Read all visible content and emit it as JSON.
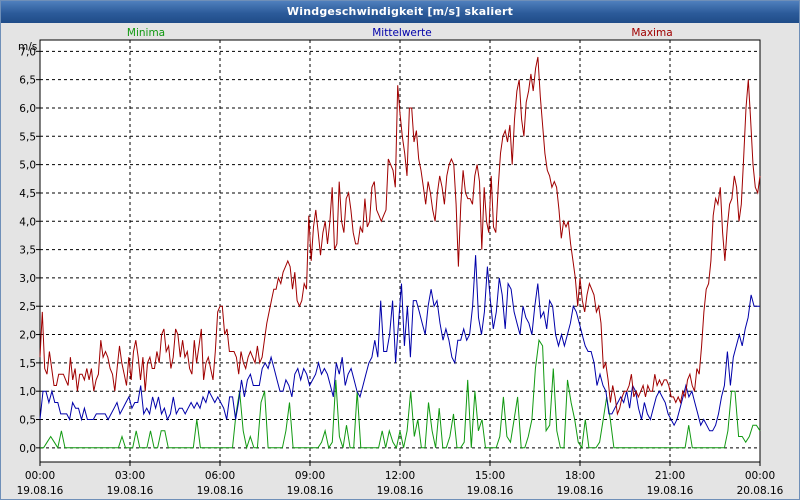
{
  "chart_data": {
    "type": "line",
    "title": "Windgeschwindigkeit [m/s] skaliert",
    "ylabel": "m/s",
    "ylim": [
      -0.25,
      7.2
    ],
    "xlim": [
      0,
      24
    ],
    "grid": true,
    "yticks": [
      "0,0",
      "0,5",
      "1,0",
      "1,5",
      "2,0",
      "2,5",
      "3,0",
      "3,5",
      "4,0",
      "4,5",
      "5,0",
      "5,5",
      "6,0",
      "6,5",
      "7,0"
    ],
    "xticks": [
      {
        "time": "00:00",
        "date": "19.08.16"
      },
      {
        "time": "03:00",
        "date": "19.08.16"
      },
      {
        "time": "06:00",
        "date": "19.08.16"
      },
      {
        "time": "09:00",
        "date": "19.08.16"
      },
      {
        "time": "12:00",
        "date": "19.08.16"
      },
      {
        "time": "15:00",
        "date": "19.08.16"
      },
      {
        "time": "18:00",
        "date": "19.08.16"
      },
      {
        "time": "21:00",
        "date": "19.08.16"
      },
      {
        "time": "00:00",
        "date": "20.08.16"
      }
    ],
    "series": [
      {
        "name": "Minima",
        "color": "#119911",
        "values": [
          0.0,
          0.0,
          0.1,
          0.2,
          0.1,
          0.0,
          0.3,
          0.0,
          0.0,
          0.0,
          0.0,
          0.0,
          0.0,
          0.0,
          0.0,
          0.0,
          0.0,
          0.0,
          0.0,
          0.0,
          0.0,
          0.0,
          0.0,
          0.2,
          0.0,
          0.0,
          0.0,
          0.3,
          0.0,
          0.0,
          0.0,
          0.3,
          0.0,
          0.0,
          0.3,
          0.3,
          0.0,
          0.0,
          0.0,
          0.0,
          0.0,
          0.0,
          0.0,
          0.0,
          0.5,
          0.0,
          0.0,
          0.0,
          0.0,
          0.0,
          0.0,
          0.0,
          0.0,
          0.0,
          0.0,
          0.6,
          1.0,
          0.3,
          0.0,
          0.2,
          0.0,
          0.0,
          0.8,
          1.0,
          0.0,
          0.0,
          0.0,
          0.0,
          0.0,
          0.3,
          0.8,
          0.0,
          0.0,
          0.0,
          0.0,
          0.0,
          0.0,
          0.0,
          0.0,
          0.1,
          0.3,
          0.0,
          0.1,
          1.2,
          0.2,
          0.0,
          0.4,
          0.0,
          0.0,
          1.0,
          0.0,
          0.0,
          0.0,
          0.0,
          0.0,
          0.0,
          0.3,
          0.0,
          0.3,
          0.1,
          0.0,
          0.3,
          0.0,
          0.3,
          1.0,
          0.2,
          0.5,
          0.0,
          0.0,
          0.8,
          0.3,
          0.0,
          0.7,
          0.0,
          0.0,
          0.2,
          0.6,
          0.0,
          0.0,
          0.1,
          1.2,
          0.0,
          1.0,
          0.3,
          0.5,
          0.0,
          0.0,
          0.0,
          0.0,
          0.2,
          0.9,
          0.2,
          0.1,
          0.5,
          0.9,
          0.0,
          0.0,
          0.2,
          0.5,
          1.4,
          1.9,
          1.8,
          0.3,
          0.4,
          1.4,
          0.3,
          0.0,
          0.0,
          1.2,
          0.8,
          0.5,
          0.1,
          0.0,
          0.5,
          0.0,
          0.0,
          0.0,
          0.1,
          0.5,
          0.9,
          0.5,
          0.0,
          0.0,
          0.0,
          0.0,
          0.0,
          0.0,
          0.0,
          0.0,
          0.0,
          0.0,
          0.0,
          0.0,
          0.0,
          0.0,
          0.0,
          0.0,
          0.0,
          0.0,
          0.0,
          0.0,
          0.0,
          0.4,
          0.0,
          0.0,
          0.0,
          0.0,
          0.0,
          0.0,
          0.0,
          0.0,
          0.0,
          0.0,
          0.3,
          1.0,
          1.0,
          0.2,
          0.2,
          0.1,
          0.2,
          0.4,
          0.4,
          0.3
        ]
      },
      {
        "name": "Mittelwerte",
        "color": "#0000aa",
        "values": [
          0.5,
          1.0,
          1.0,
          0.8,
          1.0,
          0.8,
          0.8,
          0.6,
          0.6,
          0.6,
          0.5,
          0.8,
          0.7,
          0.7,
          0.5,
          0.7,
          0.5,
          0.5,
          0.5,
          0.6,
          0.6,
          0.6,
          0.6,
          0.5,
          0.6,
          0.7,
          0.8,
          0.6,
          0.7,
          0.8,
          0.9,
          0.7,
          0.8,
          0.8,
          1.1,
          0.6,
          0.7,
          0.6,
          0.9,
          0.7,
          0.9,
          0.6,
          0.7,
          0.5,
          0.6,
          0.9,
          0.6,
          0.7,
          0.7,
          0.6,
          0.7,
          0.8,
          0.7,
          0.8,
          0.7,
          0.9,
          0.8,
          1.0,
          0.9,
          0.8,
          0.9,
          0.8,
          0.7,
          0.5,
          0.9,
          0.9,
          0.5,
          0.8,
          1.2,
          0.9,
          1.2,
          1.3,
          1.1,
          1.1,
          1.1,
          1.4,
          1.5,
          1.4,
          1.6,
          1.4,
          1.2,
          1.0,
          1.0,
          1.2,
          1.1,
          0.9,
          1.3,
          1.4,
          1.2,
          1.4,
          1.3,
          1.1,
          1.2,
          1.3,
          1.5,
          1.3,
          1.4,
          1.3,
          1.1,
          0.9,
          1.5,
          1.3,
          1.6,
          1.1,
          1.3,
          1.4,
          1.2,
          1.0,
          0.9,
          1.1,
          1.3,
          1.5,
          1.6,
          1.9,
          1.6,
          2.6,
          1.7,
          1.7,
          2.0,
          2.6,
          1.5,
          2.2,
          2.9,
          1.8,
          2.5,
          1.6,
          2.6,
          2.6,
          2.4,
          2.2,
          2.0,
          2.5,
          2.8,
          2.5,
          2.6,
          2.2,
          1.9,
          2.1,
          1.9,
          1.6,
          1.5,
          1.9,
          1.9,
          2.1,
          1.9,
          2.0,
          2.5,
          3.4,
          2.3,
          2.0,
          2.4,
          3.2,
          2.6,
          2.1,
          2.4,
          3.0,
          2.7,
          2.1,
          2.9,
          2.8,
          2.4,
          2.2,
          2.0,
          2.5,
          2.3,
          2.2,
          2.0,
          2.5,
          2.9,
          2.3,
          2.4,
          2.1,
          2.6,
          2.5,
          2.0,
          1.8,
          2.0,
          1.8,
          2.0,
          2.2,
          2.5,
          2.4,
          2.2,
          2.0,
          1.8,
          1.7,
          1.7,
          1.5,
          1.1,
          1.3,
          1.1,
          1.0,
          0.6,
          0.6,
          0.7,
          0.8,
          0.9,
          0.8,
          1.0,
          0.7,
          1.1,
          1.0,
          0.7,
          0.5,
          0.8,
          0.6,
          0.5,
          0.7,
          0.9,
          1.0,
          0.9,
          0.8,
          0.6,
          0.5,
          0.4,
          0.5,
          0.7,
          0.9,
          1.1,
          0.9,
          1.0,
          0.8,
          0.6,
          0.4,
          0.5,
          0.4,
          0.3,
          0.3,
          0.4,
          0.6,
          0.9,
          1.1,
          1.7,
          1.1,
          1.6,
          1.8,
          2.0,
          1.8,
          2.1,
          2.3,
          2.7,
          2.5,
          2.5,
          2.5
        ]
      },
      {
        "name": "Maxima",
        "color": "#a00000",
        "values": [
          1.6,
          2.4,
          1.4,
          1.3,
          1.7,
          1.4,
          1.1,
          1.1,
          1.3,
          1.3,
          1.3,
          1.2,
          1.1,
          1.6,
          1.2,
          1.4,
          1.0,
          1.3,
          1.3,
          1.2,
          1.4,
          1.2,
          1.4,
          1.0,
          1.2,
          1.3,
          1.9,
          1.6,
          1.7,
          1.6,
          1.4,
          1.3,
          1.0,
          1.4,
          1.8,
          1.5,
          1.3,
          1.1,
          1.6,
          1.2,
          1.7,
          1.9,
          1.6,
          1.2,
          1.6,
          1.0,
          1.5,
          1.6,
          1.4,
          1.4,
          1.7,
          1.5,
          2.0,
          2.1,
          1.7,
          1.8,
          1.4,
          1.6,
          2.1,
          2.0,
          1.6,
          1.9,
          1.6,
          1.7,
          1.4,
          1.3,
          1.9,
          1.5,
          1.8,
          2.1,
          1.2,
          1.5,
          1.6,
          1.4,
          1.2,
          1.7,
          2.4,
          2.5,
          2.5,
          2.0,
          2.1,
          1.7,
          1.7,
          1.7,
          1.6,
          1.3,
          1.7,
          1.5,
          1.4,
          1.6,
          1.7,
          1.6,
          1.5,
          1.8,
          1.5,
          1.6,
          1.9,
          2.2,
          2.4,
          2.6,
          2.8,
          2.8,
          3.0,
          2.9,
          3.1,
          3.2,
          3.3,
          3.2,
          2.8,
          3.1,
          2.6,
          2.5,
          2.6,
          2.9,
          2.8,
          4.1,
          3.3,
          3.9,
          4.2,
          3.8,
          3.4,
          3.8,
          4.0,
          3.6,
          4.0,
          4.6,
          3.5,
          3.6,
          4.7,
          4.0,
          3.8,
          4.4,
          4.5,
          4.2,
          3.8,
          3.6,
          3.6,
          3.9,
          3.8,
          4.4,
          3.9,
          4.0,
          4.6,
          4.7,
          4.2,
          4.1,
          4.0,
          4.1,
          4.2,
          5.1,
          5.0,
          4.9,
          4.6,
          6.4,
          5.9,
          5.5,
          5.2,
          4.8,
          6.0,
          6.0,
          5.4,
          5.6,
          5.1,
          4.9,
          4.6,
          4.3,
          4.7,
          4.5,
          4.2,
          4.0,
          4.5,
          4.8,
          4.6,
          4.3,
          4.8,
          5.0,
          5.1,
          5.0,
          4.3,
          3.2,
          4.3,
          4.9,
          4.5,
          4.4,
          4.4,
          4.3,
          4.8,
          5.0,
          4.7,
          3.5,
          4.6,
          4.0,
          3.8,
          4.8,
          3.9,
          3.8,
          4.6,
          5.2,
          5.5,
          5.6,
          5.4,
          5.7,
          5.0,
          5.8,
          6.3,
          6.5,
          5.8,
          5.5,
          6.1,
          6.3,
          6.6,
          6.3,
          6.7,
          6.9,
          6.2,
          5.7,
          5.2,
          4.9,
          4.8,
          4.6,
          4.7,
          4.6,
          4.2,
          3.7,
          4.0,
          3.9,
          4.0,
          3.6,
          3.3,
          3.0,
          2.5,
          3.0,
          2.6,
          2.4,
          2.7,
          2.9,
          2.8,
          2.7,
          2.4,
          2.5,
          2.2,
          1.4,
          1.5,
          1.2,
          0.8,
          1.1,
          0.9,
          0.6,
          0.7,
          0.9,
          1.0,
          1.0,
          1.1,
          1.3,
          0.9,
          1.0,
          0.9,
          1.0,
          1.1,
          0.9,
          1.1,
          1.0,
          1.0,
          1.3,
          1.1,
          1.2,
          1.1,
          1.2,
          1.2,
          1.1,
          0.9,
          0.9,
          0.8,
          0.9,
          0.8,
          1.0,
          0.9,
          1.2,
          1.3,
          1.1,
          1.0,
          1.4,
          1.3,
          1.8,
          2.4,
          2.8,
          2.9,
          3.3,
          4.1,
          4.4,
          4.3,
          4.6,
          3.8,
          3.3,
          3.9,
          4.3,
          4.4,
          4.8,
          4.6,
          4.0,
          4.3,
          5.1,
          6.0,
          6.5,
          5.8,
          5.0,
          4.6,
          4.5,
          4.8
        ]
      }
    ]
  }
}
